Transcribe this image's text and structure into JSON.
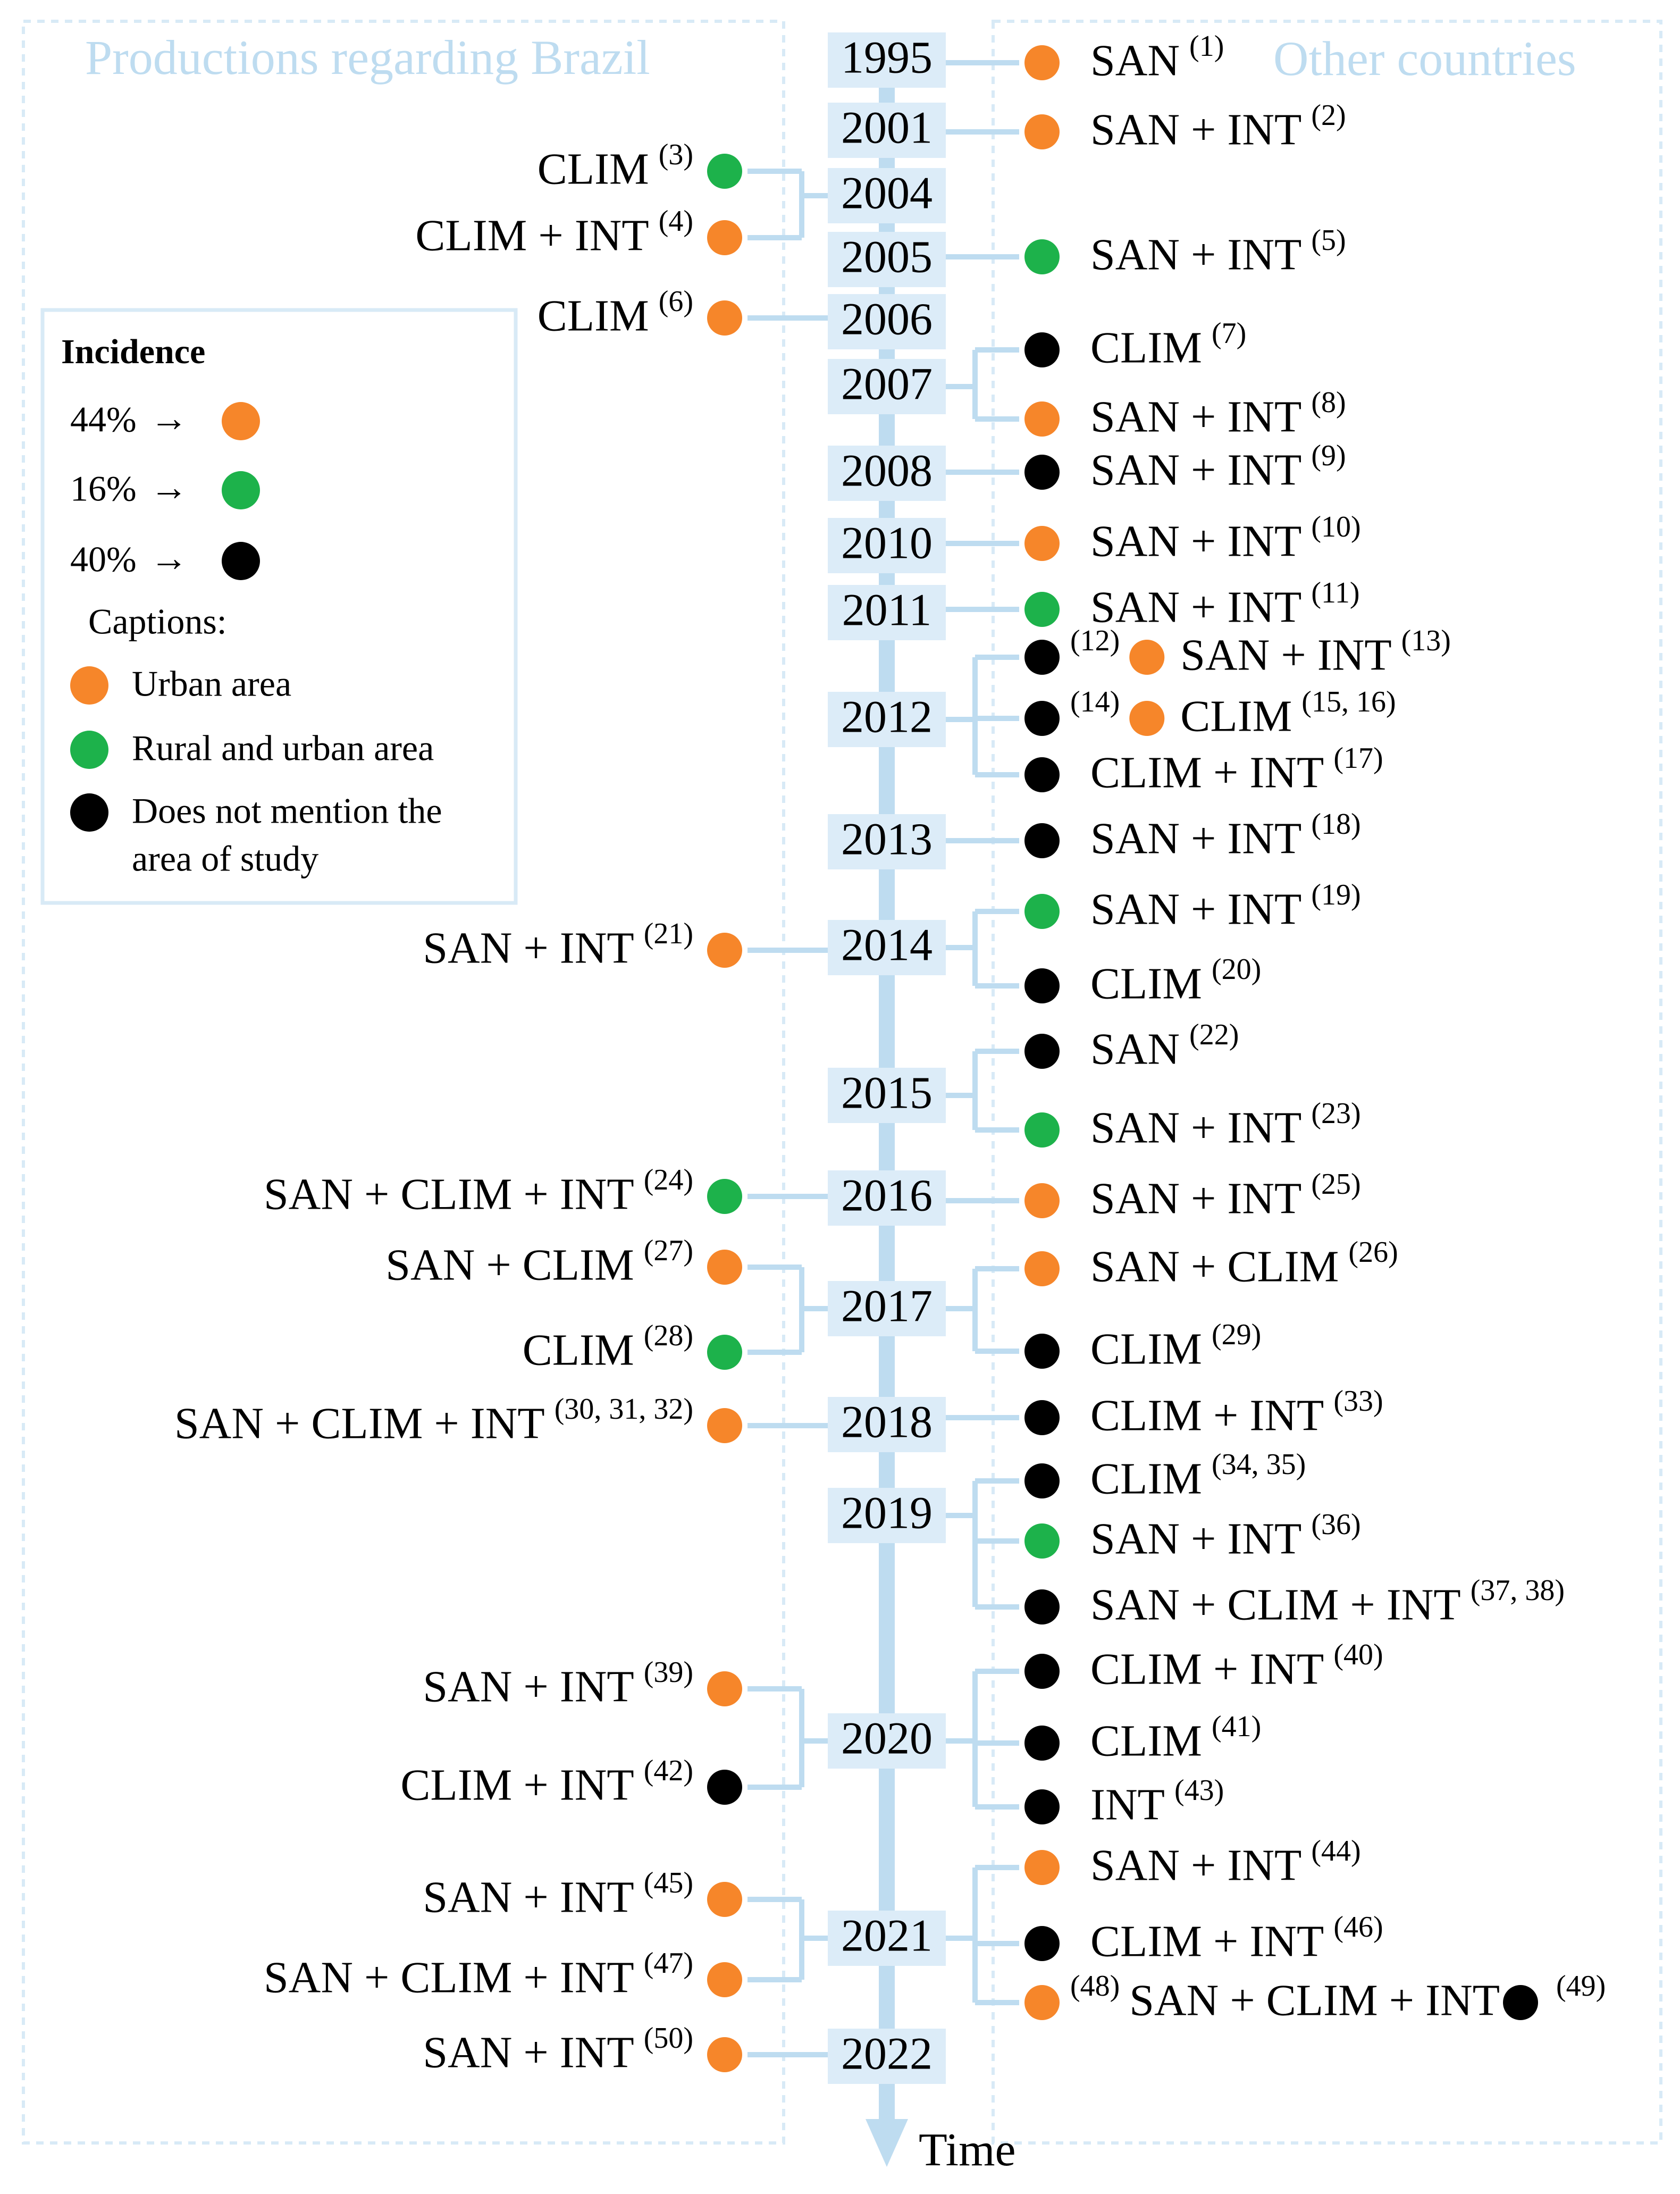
{
  "headers": {
    "brazil": "Productions regarding Brazil",
    "other": "Other countries"
  },
  "axis_label": "Time",
  "years": [
    "1995",
    "2001",
    "2004",
    "2005",
    "2006",
    "2007",
    "2008",
    "2010",
    "2011",
    "2012",
    "2013",
    "2014",
    "2015",
    "2016",
    "2017",
    "2018",
    "2019",
    "2020",
    "2021",
    "2022"
  ],
  "legend": {
    "title": "Incidence",
    "incidence": [
      {
        "pct": "44%",
        "arrow": "→",
        "category": "urban"
      },
      {
        "pct": "16%",
        "arrow": "→",
        "category": "rural"
      },
      {
        "pct": "40%",
        "arrow": "→",
        "category": "none"
      }
    ],
    "captions_title": "Captions:",
    "captions": [
      {
        "category": "urban",
        "lines": [
          "Urban area"
        ]
      },
      {
        "category": "rural",
        "lines": [
          "Rural and urban area"
        ]
      },
      {
        "category": "none",
        "lines": [
          "Does not mention the",
          "area of study"
        ]
      }
    ]
  },
  "colors": {
    "urban": "#f6862a",
    "rural": "#1db24b",
    "none": "#000000",
    "timeline": "#bedcf0",
    "year_box": "#dcecf8",
    "header": "#bedcf0",
    "border": "#d8eaf6",
    "text": "#000000"
  },
  "left_entries": [
    {
      "year": "2004",
      "label": "CLIM",
      "ref": "(3)",
      "category": "rural"
    },
    {
      "year": "2004",
      "label": "CLIM + INT",
      "ref": "(4)",
      "category": "urban"
    },
    {
      "year": "2006",
      "label": "CLIM",
      "ref": "(6)",
      "category": "urban"
    },
    {
      "year": "2014",
      "label": "SAN + INT",
      "ref": "(21)",
      "category": "urban"
    },
    {
      "year": "2016",
      "label": "SAN + CLIM + INT",
      "ref": "(24)",
      "category": "rural"
    },
    {
      "year": "2017",
      "label": "SAN + CLIM",
      "ref": "(27)",
      "category": "urban"
    },
    {
      "year": "2017",
      "label": "CLIM",
      "ref": "(28)",
      "category": "rural"
    },
    {
      "year": "2018",
      "label": "SAN + CLIM + INT",
      "ref": "(30, 31, 32)",
      "category": "urban"
    },
    {
      "year": "2020",
      "label": "SAN + INT",
      "ref": "(39)",
      "category": "urban"
    },
    {
      "year": "2020",
      "label": "CLIM + INT",
      "ref": "(42)",
      "category": "none"
    },
    {
      "year": "2021",
      "label": "SAN + INT",
      "ref": "(45)",
      "category": "urban"
    },
    {
      "year": "2021",
      "label": "SAN + CLIM + INT",
      "ref": "(47)",
      "category": "urban"
    },
    {
      "year": "2022",
      "label": "SAN + INT",
      "ref": "(50)",
      "category": "urban"
    }
  ],
  "right_entries": [
    {
      "year": "1995",
      "label": "SAN",
      "ref": "(1)",
      "category": "urban"
    },
    {
      "year": "2001",
      "label": "SAN + INT",
      "ref": "(2)",
      "category": "urban"
    },
    {
      "year": "2005",
      "label": "SAN + INT",
      "ref": "(5)",
      "category": "rural"
    },
    {
      "year": "2007",
      "label": "CLIM",
      "ref": "(7)",
      "category": "none"
    },
    {
      "year": "2007",
      "label": "SAN + INT",
      "ref": "(8)",
      "category": "urban"
    },
    {
      "year": "2008",
      "label": "SAN + INT",
      "ref": "(9)",
      "category": "none"
    },
    {
      "year": "2010",
      "label": "SAN + INT",
      "ref": "(10)",
      "category": "urban"
    },
    {
      "year": "2011",
      "label": "SAN + INT",
      "ref": "(11)",
      "category": "rural"
    },
    {
      "year": "2012",
      "label": "SAN + INT",
      "ref": "(13)",
      "category": "urban",
      "pre": {
        "ref": "(12)",
        "category": "none"
      }
    },
    {
      "year": "2012",
      "label": "CLIM",
      "ref": "(15, 16)",
      "category": "urban",
      "pre": {
        "ref": "(14)",
        "category": "none"
      }
    },
    {
      "year": "2012",
      "label": "CLIM + INT",
      "ref": "(17)",
      "category": "none"
    },
    {
      "year": "2013",
      "label": "SAN + INT",
      "ref": "(18)",
      "category": "none"
    },
    {
      "year": "2014",
      "label": "SAN + INT",
      "ref": "(19)",
      "category": "rural"
    },
    {
      "year": "2014",
      "label": "CLIM",
      "ref": "(20)",
      "category": "none"
    },
    {
      "year": "2015",
      "label": "SAN",
      "ref": "(22)",
      "category": "none"
    },
    {
      "year": "2015",
      "label": "SAN + INT",
      "ref": "(23)",
      "category": "rural"
    },
    {
      "year": "2016",
      "label": "SAN + INT",
      "ref": "(25)",
      "category": "urban"
    },
    {
      "year": "2017",
      "label": "SAN + CLIM",
      "ref": "(26)",
      "category": "urban"
    },
    {
      "year": "2017",
      "label": "CLIM",
      "ref": "(29)",
      "category": "none"
    },
    {
      "year": "2018",
      "label": "CLIM + INT",
      "ref": "(33)",
      "category": "none"
    },
    {
      "year": "2019",
      "label": "CLIM",
      "ref": "(34, 35)",
      "category": "none"
    },
    {
      "year": "2019",
      "label": "SAN + INT",
      "ref": "(36)",
      "category": "rural"
    },
    {
      "year": "2019",
      "label": "SAN + CLIM + INT",
      "ref": "(37, 38)",
      "category": "none"
    },
    {
      "year": "2020",
      "label": "CLIM + INT",
      "ref": "(40)",
      "category": "none"
    },
    {
      "year": "2020",
      "label": "CLIM",
      "ref": "(41)",
      "category": "none"
    },
    {
      "year": "2020",
      "label": "INT",
      "ref": "(43)",
      "category": "none"
    },
    {
      "year": "2021",
      "label": "SAN + INT",
      "ref": "(44)",
      "category": "urban"
    },
    {
      "year": "2021",
      "label": "CLIM + INT",
      "ref": "(46)",
      "category": "none"
    },
    {
      "year": "2021",
      "label": "SAN + CLIM + INT",
      "ref": "(49)",
      "category": "none",
      "pre": {
        "ref": "(48)",
        "category": "urban"
      },
      "dot_after": true
    }
  ]
}
